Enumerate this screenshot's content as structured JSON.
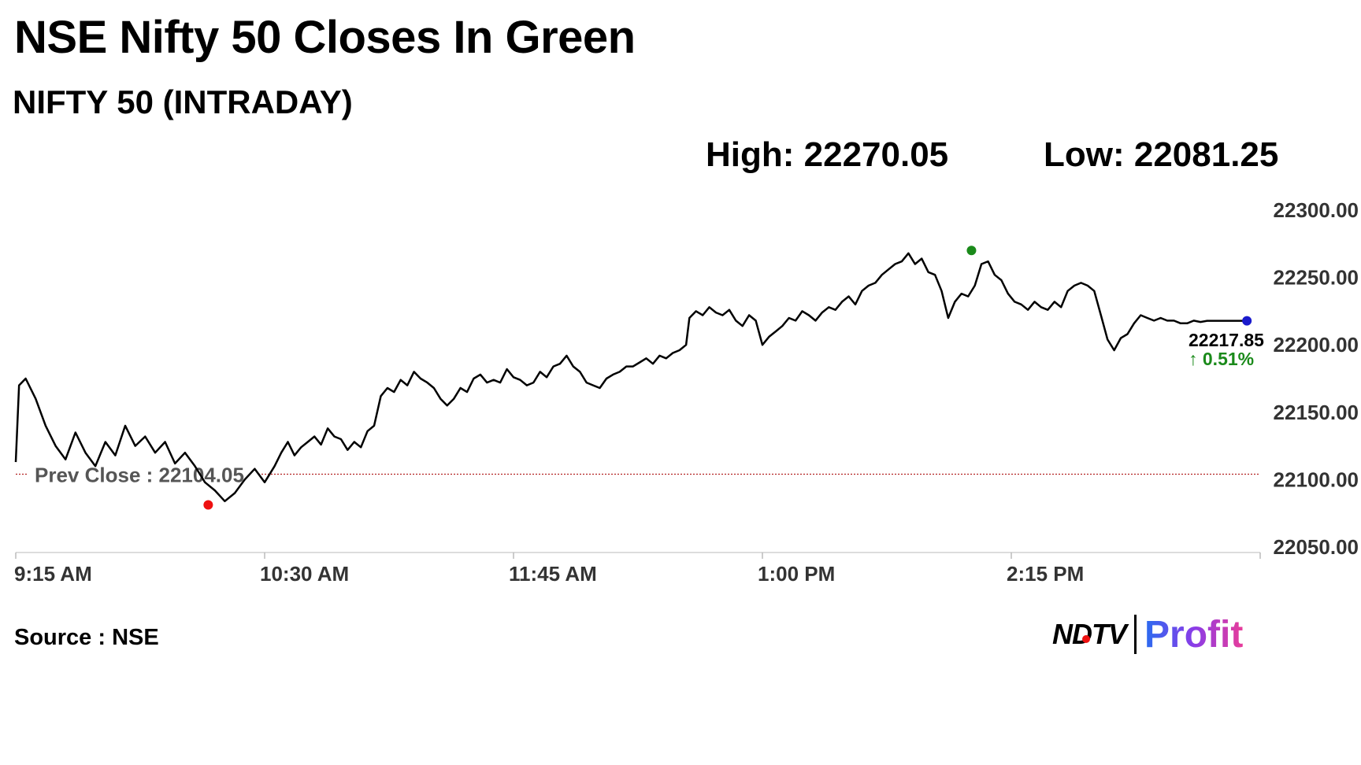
{
  "title": "NSE Nifty 50 Closes In Green",
  "subtitle": "NIFTY 50 (INTRADAY)",
  "high_label": "High: 22270.05",
  "low_label": "Low: 22081.25",
  "source": "Source : NSE",
  "logo": {
    "left": "NDTV",
    "right": "Profit"
  },
  "chart_data": {
    "type": "line",
    "series": [
      {
        "values": [
          [
            0,
            22113
          ],
          [
            1,
            22170
          ],
          [
            3,
            22175
          ],
          [
            6,
            22160
          ],
          [
            9,
            22140
          ],
          [
            12,
            22125
          ],
          [
            15,
            22115
          ],
          [
            18,
            22135
          ],
          [
            21,
            22120
          ],
          [
            24,
            22110
          ],
          [
            27,
            22128
          ],
          [
            30,
            22118
          ],
          [
            33,
            22140
          ],
          [
            36,
            22125
          ],
          [
            39,
            22132
          ],
          [
            42,
            22120
          ],
          [
            45,
            22128
          ],
          [
            48,
            22112
          ],
          [
            51,
            22120
          ],
          [
            54,
            22110
          ],
          [
            57,
            22098
          ],
          [
            60,
            22092
          ],
          [
            63,
            22084
          ],
          [
            66,
            22090
          ],
          [
            69,
            22100
          ],
          [
            72,
            22108
          ],
          [
            75,
            22098
          ],
          [
            78,
            22110
          ],
          [
            80,
            22120
          ],
          [
            82,
            22128
          ],
          [
            84,
            22118
          ],
          [
            86,
            22124
          ],
          [
            88,
            22128
          ],
          [
            90,
            22132
          ],
          [
            92,
            22126
          ],
          [
            94,
            22138
          ],
          [
            96,
            22132
          ],
          [
            98,
            22130
          ],
          [
            100,
            22122
          ],
          [
            102,
            22128
          ],
          [
            104,
            22124
          ],
          [
            106,
            22136
          ],
          [
            108,
            22140
          ],
          [
            110,
            22162
          ],
          [
            112,
            22168
          ],
          [
            114,
            22165
          ],
          [
            116,
            22174
          ],
          [
            118,
            22170
          ],
          [
            120,
            22180
          ],
          [
            122,
            22175
          ],
          [
            124,
            22172
          ],
          [
            126,
            22168
          ],
          [
            128,
            22160
          ],
          [
            130,
            22155
          ],
          [
            132,
            22160
          ],
          [
            134,
            22168
          ],
          [
            136,
            22165
          ],
          [
            138,
            22175
          ],
          [
            140,
            22178
          ],
          [
            142,
            22172
          ],
          [
            144,
            22174
          ],
          [
            146,
            22172
          ],
          [
            148,
            22182
          ],
          [
            150,
            22176
          ],
          [
            152,
            22174
          ],
          [
            154,
            22170
          ],
          [
            156,
            22172
          ],
          [
            158,
            22180
          ],
          [
            160,
            22176
          ],
          [
            162,
            22184
          ],
          [
            164,
            22186
          ],
          [
            166,
            22192
          ],
          [
            168,
            22184
          ],
          [
            170,
            22180
          ],
          [
            172,
            22172
          ],
          [
            174,
            22170
          ],
          [
            176,
            22168
          ],
          [
            178,
            22175
          ],
          [
            180,
            22178
          ],
          [
            182,
            22180
          ],
          [
            184,
            22184
          ],
          [
            186,
            22184
          ],
          [
            188,
            22187
          ],
          [
            190,
            22190
          ],
          [
            192,
            22186
          ],
          [
            194,
            22192
          ],
          [
            196,
            22190
          ],
          [
            198,
            22194
          ],
          [
            200,
            22196
          ],
          [
            202,
            22200
          ],
          [
            203,
            22220
          ],
          [
            205,
            22225
          ],
          [
            207,
            22222
          ],
          [
            209,
            22228
          ],
          [
            211,
            22224
          ],
          [
            213,
            22222
          ],
          [
            215,
            22226
          ],
          [
            217,
            22218
          ],
          [
            219,
            22214
          ],
          [
            221,
            22222
          ],
          [
            223,
            22218
          ],
          [
            225,
            22200
          ],
          [
            227,
            22206
          ],
          [
            229,
            22210
          ],
          [
            231,
            22214
          ],
          [
            233,
            22220
          ],
          [
            235,
            22218
          ],
          [
            237,
            22225
          ],
          [
            239,
            22222
          ],
          [
            241,
            22218
          ],
          [
            243,
            22224
          ],
          [
            245,
            22228
          ],
          [
            247,
            22226
          ],
          [
            249,
            22232
          ],
          [
            251,
            22236
          ],
          [
            253,
            22230
          ],
          [
            255,
            22240
          ],
          [
            257,
            22244
          ],
          [
            259,
            22246
          ],
          [
            261,
            22252
          ],
          [
            263,
            22256
          ],
          [
            265,
            22260
          ],
          [
            267,
            22262
          ],
          [
            269,
            22268
          ],
          [
            271,
            22260
          ],
          [
            273,
            22264
          ],
          [
            275,
            22254
          ],
          [
            277,
            22252
          ],
          [
            279,
            22240
          ],
          [
            281,
            22220
          ],
          [
            283,
            22232
          ],
          [
            285,
            22238
          ],
          [
            287,
            22236
          ],
          [
            289,
            22244
          ],
          [
            291,
            22260
          ],
          [
            293,
            22262
          ],
          [
            295,
            22252
          ],
          [
            297,
            22248
          ],
          [
            299,
            22238
          ],
          [
            301,
            22232
          ],
          [
            303,
            22230
          ],
          [
            305,
            22226
          ],
          [
            307,
            22232
          ],
          [
            309,
            22228
          ],
          [
            311,
            22226
          ],
          [
            313,
            22232
          ],
          [
            315,
            22228
          ],
          [
            317,
            22240
          ],
          [
            319,
            22244
          ],
          [
            321,
            22246
          ],
          [
            323,
            22244
          ],
          [
            325,
            22240
          ],
          [
            327,
            22222
          ],
          [
            329,
            22204
          ],
          [
            331,
            22196
          ],
          [
            333,
            22205
          ],
          [
            335,
            22208
          ],
          [
            337,
            22216
          ],
          [
            339,
            22222
          ],
          [
            341,
            22220
          ],
          [
            343,
            22218
          ],
          [
            345,
            22220
          ],
          [
            347,
            22218
          ],
          [
            349,
            22218
          ],
          [
            351,
            22216
          ],
          [
            353,
            22216
          ],
          [
            355,
            22218
          ],
          [
            357,
            22217
          ],
          [
            359,
            22217.85
          ]
        ]
      }
    ],
    "x_ticks": [
      "9:15 AM",
      "10:30 AM",
      "11:45 AM",
      "1:00 PM",
      "2:15 PM"
    ],
    "x_tick_minutes": [
      0,
      75,
      150,
      225,
      300
    ],
    "xlim": [
      0,
      375
    ],
    "y_ticks": [
      "22300.00",
      "22250.00",
      "22200.00",
      "22150.00",
      "22100.00",
      "22050.00"
    ],
    "ylim": [
      22050,
      22300
    ],
    "prev_close": 22104.05,
    "prev_close_label": "Prev Close : 22104.05",
    "high": {
      "minute": 288,
      "value": 22270.05,
      "color": "#1a8a1a"
    },
    "low": {
      "minute": 58,
      "value": 22081.25,
      "color": "#ee1111"
    },
    "last": {
      "minute": 371,
      "value": 22217.85,
      "color": "#1a1acc"
    },
    "last_label": "22217.85",
    "change_label": "↑ 0.51%",
    "change_color": "#1a8a1a",
    "grid": false
  }
}
